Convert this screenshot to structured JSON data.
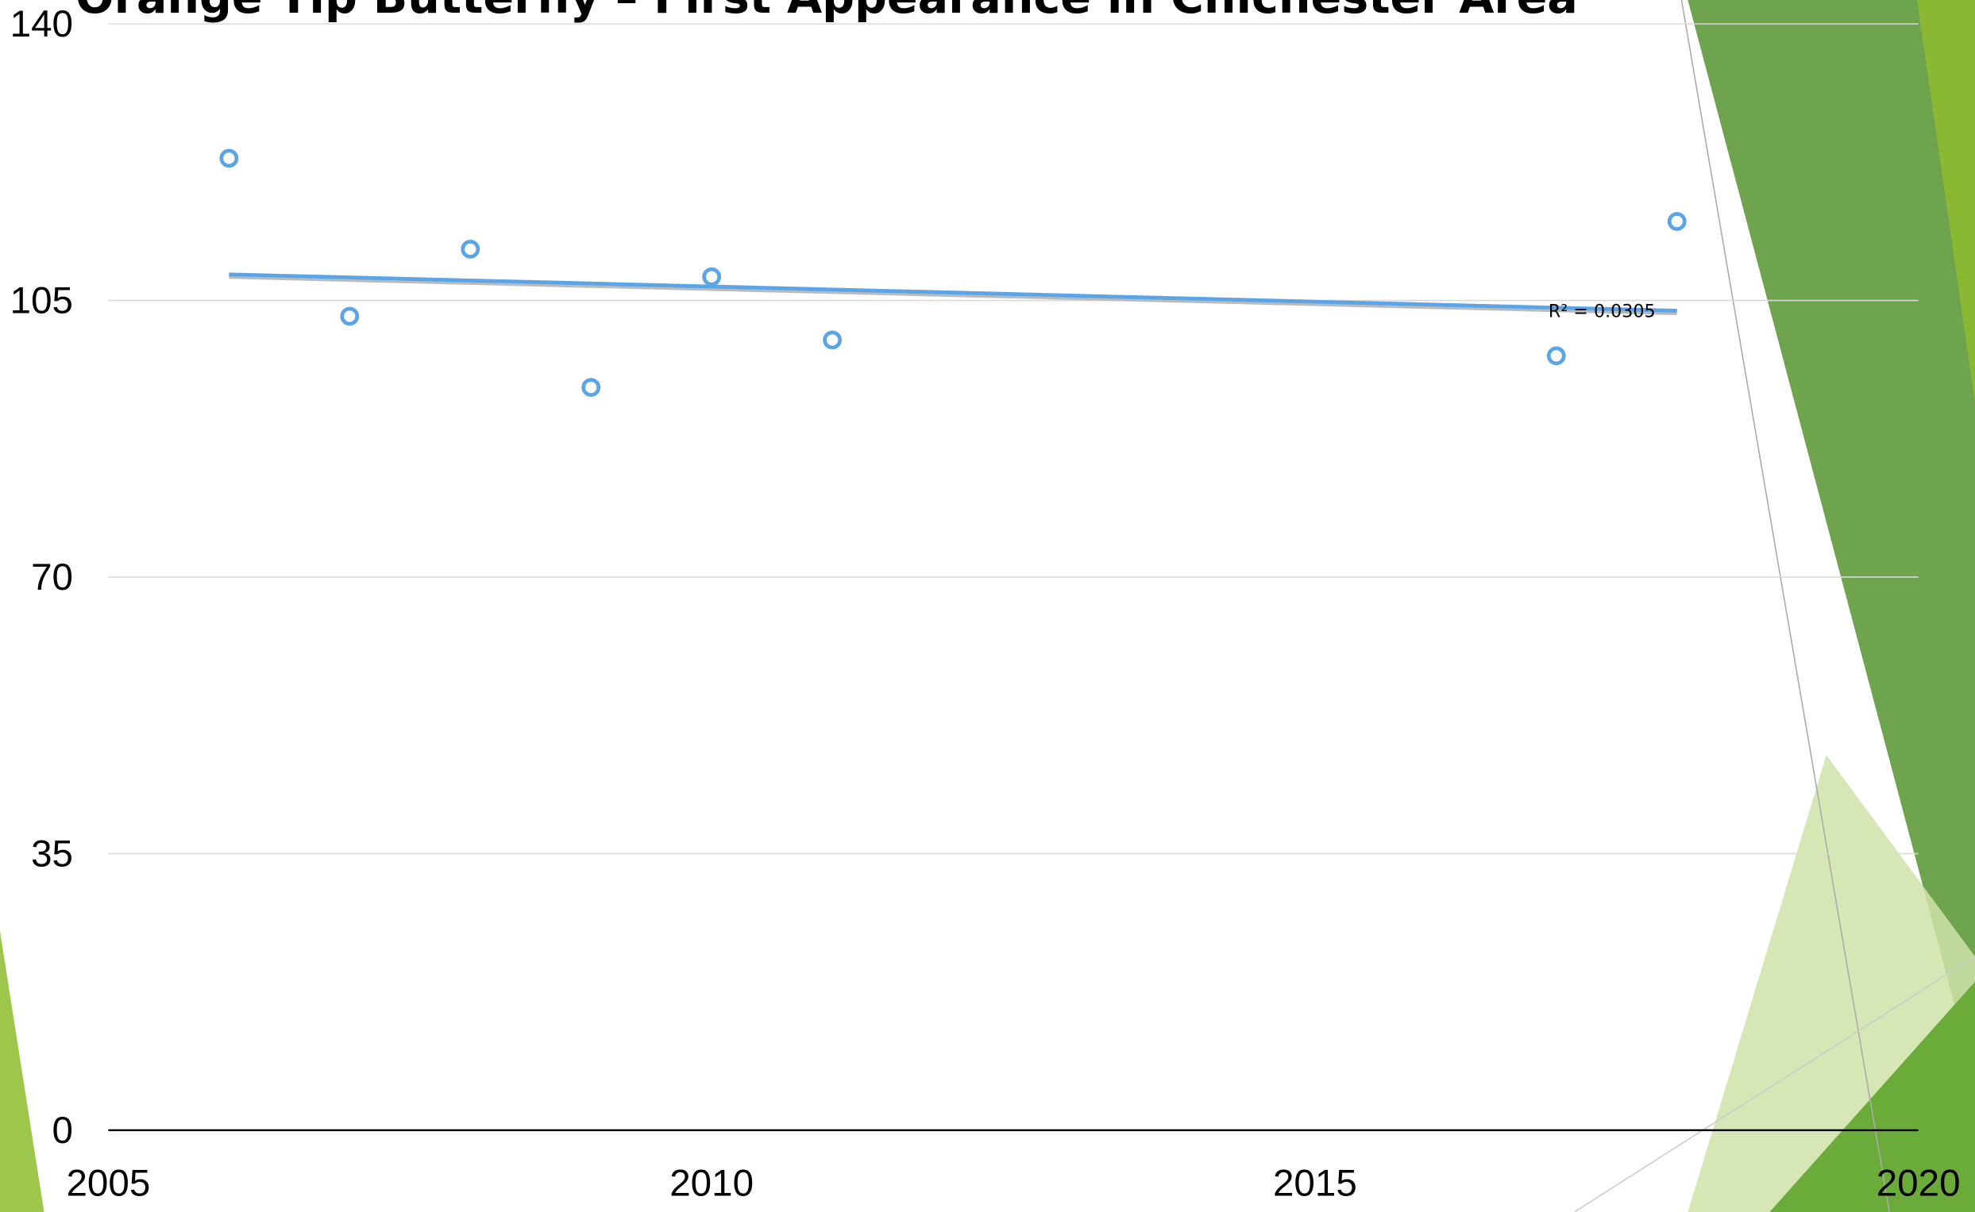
{
  "chart_data": {
    "type": "scatter",
    "title": "Orange Tip Butterfly – First Appearance in Chichester Area",
    "x": [
      2006,
      2007,
      2008,
      2009,
      2010,
      2011,
      2017,
      2018
    ],
    "values": [
      123,
      103,
      111.5,
      94,
      108,
      100,
      98,
      115
    ],
    "color": "#5aa5e8",
    "trendline": {
      "x": [
        2006,
        2018
      ],
      "values": [
        108.3,
        103.7
      ],
      "color": "#5aa5e8"
    },
    "annotation": "R² = 0.0305",
    "xlim": [
      2005,
      2020
    ],
    "xticks": [
      2005,
      2010,
      2015,
      2020
    ],
    "ylim": [
      0,
      140
    ],
    "yticks": [
      0,
      35,
      70,
      105,
      140
    ],
    "grid": true
  }
}
